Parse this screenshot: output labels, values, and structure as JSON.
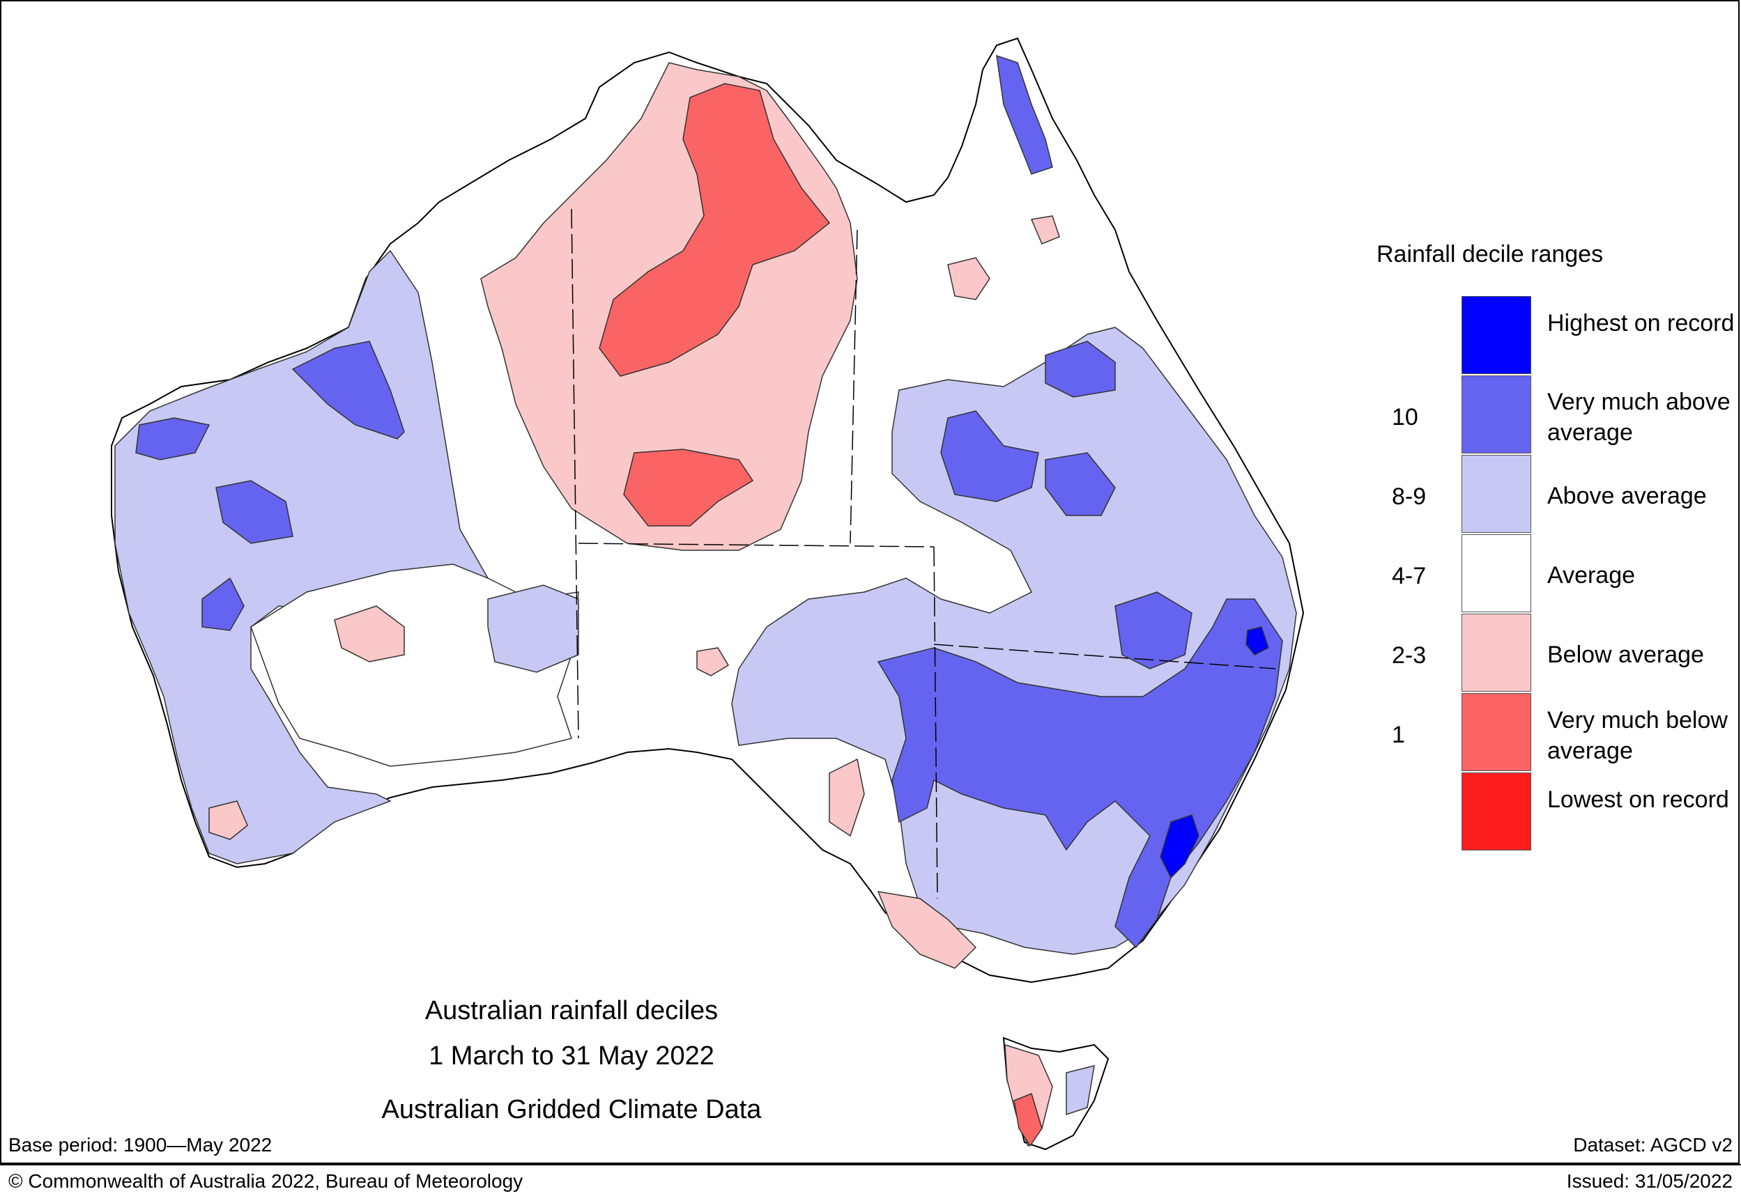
{
  "title": {
    "line1": "Australian rainfall deciles",
    "line2": "1 March to 31 May 2022",
    "line3": "Australian Gridded Climate Data"
  },
  "legend": {
    "title": "Rainfall decile ranges",
    "categories": [
      {
        "label": "Highest on record",
        "color": "#0000ff"
      },
      {
        "label": "Very much above average",
        "color": "#6464f0"
      },
      {
        "label": "Above average",
        "color": "#c8c8f4"
      },
      {
        "label": "Average",
        "color": "#ffffff"
      },
      {
        "label": "Below average",
        "color": "#fac8c8"
      },
      {
        "label": "Very much below average",
        "color": "#fa6464"
      },
      {
        "label": "Lowest on record",
        "color": "#ff1e1e"
      }
    ],
    "decile_numbers": [
      "10",
      "8-9",
      "4-7",
      "2-3",
      "1"
    ]
  },
  "footer": {
    "base_period": "Base period: 1900—May 2022",
    "dataset": "Dataset: AGCD v2",
    "copyright": "© Commonwealth of Australia 2022, Bureau of Meteorology",
    "issued": "Issued: 31/05/2022"
  },
  "map_regions": [
    {
      "region": "Top End / Arnhem Land",
      "category": "Very much below average"
    },
    {
      "region": "Northern Territory interior",
      "category": "Below average"
    },
    {
      "region": "Cape York",
      "category": "Very much above average"
    },
    {
      "region": "Pilbara",
      "category": "Very much above average"
    },
    {
      "region": "Eastern New South Wales",
      "category": "Very much above average"
    },
    {
      "region": "NSW coast near Sydney",
      "category": "Highest on record"
    },
    {
      "region": "Central Queensland",
      "category": "Above average"
    },
    {
      "region": "Southern South Australia",
      "category": "Below average"
    },
    {
      "region": "Western Victoria",
      "category": "Below average"
    },
    {
      "region": "Western Tasmania",
      "category": "Very much below average"
    },
    {
      "region": "Western Australia interior",
      "category": "Average"
    },
    {
      "region": "Central Australia",
      "category": "Average"
    }
  ]
}
